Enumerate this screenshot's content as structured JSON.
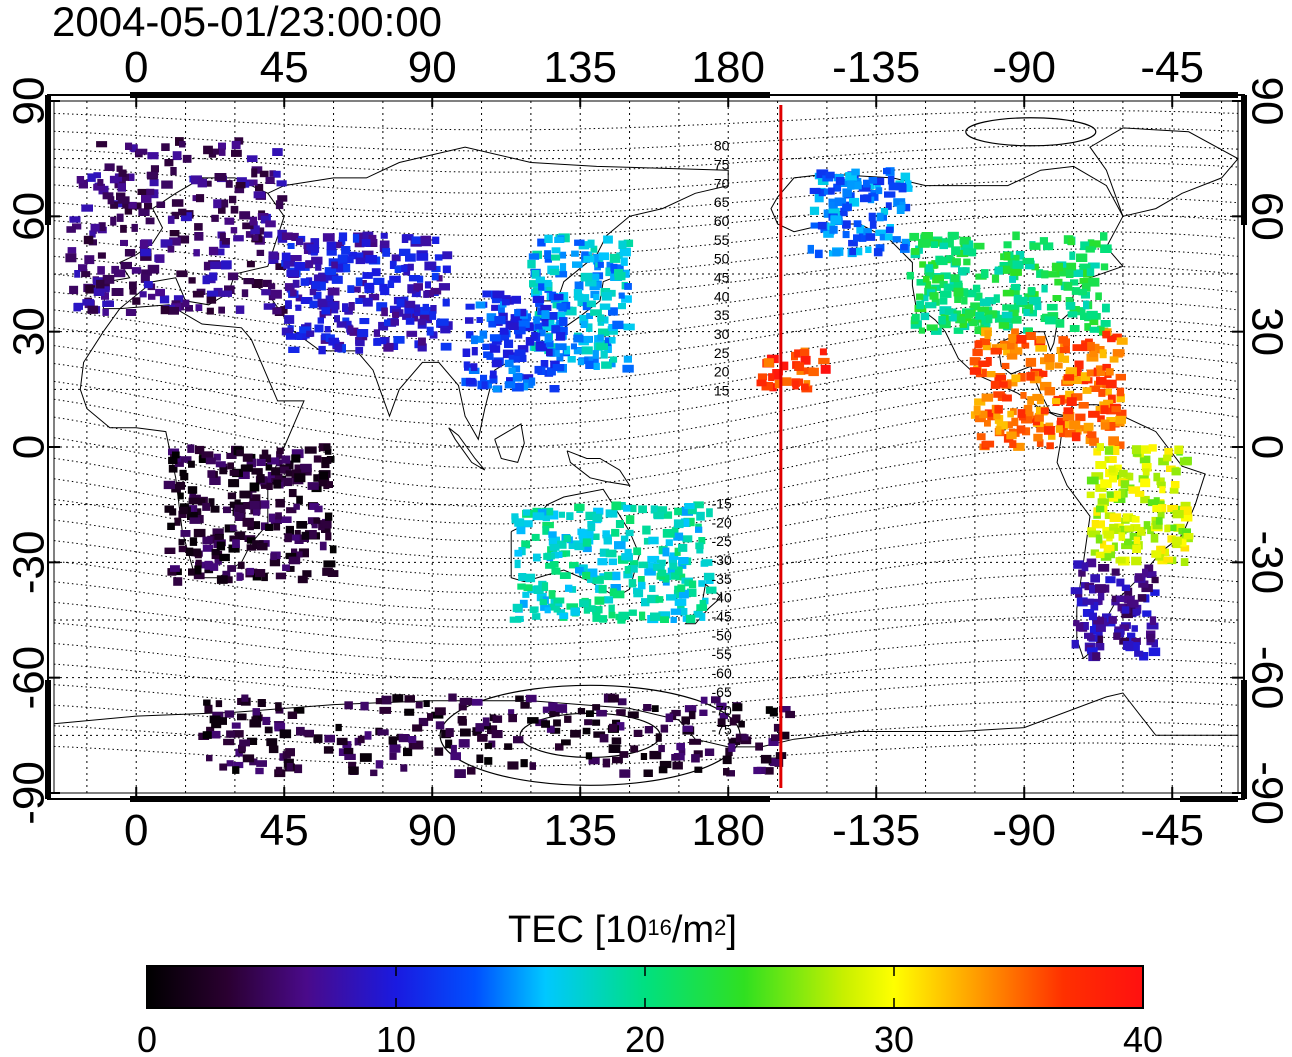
{
  "title": "2004-05-01/23:00:00",
  "map": {
    "top_lon_labels": [
      "0",
      "45",
      "90",
      "135",
      "180",
      "-135",
      "-90",
      "-45"
    ],
    "bottom_lon_labels": [
      "0",
      "45",
      "90",
      "135",
      "180",
      "-135",
      "-90",
      "-45"
    ],
    "lat_labels": [
      "90",
      "60",
      "30",
      "0",
      "-30",
      "-60",
      "-90"
    ],
    "contour_labels": [
      "80",
      "75",
      "70",
      "65",
      "60",
      "55",
      "50",
      "45",
      "40",
      "35",
      "30",
      "25",
      "20",
      "15",
      "-15",
      "-20",
      "-25",
      "-30",
      "-35",
      "-40",
      "-45",
      "-50",
      "-55",
      "-60",
      "-65",
      "-70",
      "-75"
    ],
    "terminator_color": "#e00000",
    "grid_style": "dotted"
  },
  "colorbar": {
    "title_prefix": "TEC  [10",
    "title_sup1": "16",
    "title_mid": "/m",
    "title_sup2": "2",
    "title_suffix": "]",
    "ticks": [
      "0",
      "10",
      "20",
      "30",
      "40"
    ],
    "range": [
      0,
      40
    ],
    "colormap": "jet-like (black-purple-blue-cyan-green-yellow-red)"
  },
  "chart_data": {
    "type": "heatmap",
    "title": "2004-05-01/23:00:00",
    "xlabel": "",
    "ylabel": "",
    "xlim": [
      -25,
      335
    ],
    "ylim": [
      -90,
      90
    ],
    "colorbar_range": [
      0,
      40
    ],
    "regions": [
      {
        "lon": [
          -20,
          45
        ],
        "lat": [
          35,
          80
        ],
        "tec": 6
      },
      {
        "lon": [
          45,
          95
        ],
        "lat": [
          25,
          55
        ],
        "tec": 9
      },
      {
        "lon": [
          120,
          150
        ],
        "lat": [
          20,
          55
        ],
        "tec": 16
      },
      {
        "lon": [
          100,
          130
        ],
        "lat": [
          15,
          40
        ],
        "tec": 12
      },
      {
        "lon": [
          205,
          235
        ],
        "lat": [
          50,
          72
        ],
        "tec": 14
      },
      {
        "lon": [
          235,
          295
        ],
        "lat": [
          30,
          55
        ],
        "tec": 21
      },
      {
        "lon": [
          255,
          300
        ],
        "lat": [
          0,
          30
        ],
        "tec": 35
      },
      {
        "lon": [
          190,
          210
        ],
        "lat": [
          15,
          25
        ],
        "tec": 37
      },
      {
        "lon": [
          290,
          320
        ],
        "lat": [
          -30,
          0
        ],
        "tec": 28
      },
      {
        "lon": [
          285,
          310
        ],
        "lat": [
          -55,
          -30
        ],
        "tec": 7
      },
      {
        "lon": [
          115,
          175
        ],
        "lat": [
          -45,
          -15
        ],
        "tec": 18
      },
      {
        "lon": [
          10,
          60
        ],
        "lat": [
          -35,
          0
        ],
        "tec": 3
      },
      {
        "lon": [
          20,
          200
        ],
        "lat": [
          -85,
          -65
        ],
        "tec": 3
      }
    ]
  }
}
